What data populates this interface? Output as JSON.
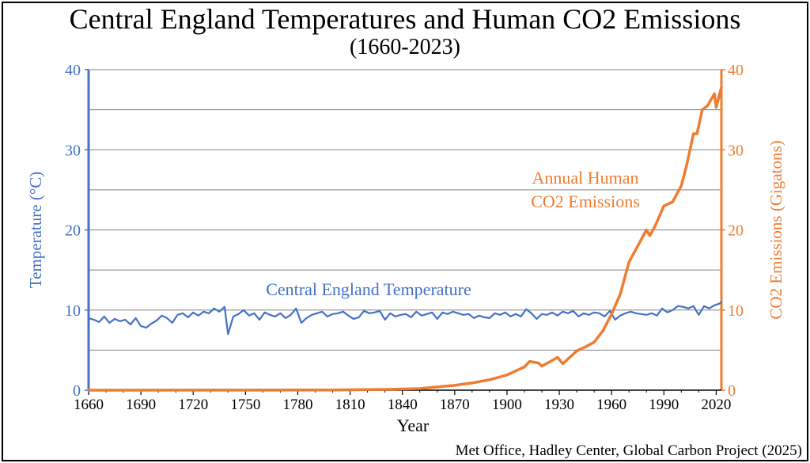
{
  "header": {
    "title": "Central England Temperatures and Human CO2 Emissions",
    "subtitle": "(1660-2023)"
  },
  "footer": {
    "source": "Met Office, Hadley Center, Global Carbon Project (2025)"
  },
  "colors": {
    "temperature": "#4472c4",
    "co2": "#ed7d31",
    "grid": "#808080",
    "axis": "#000000"
  },
  "chart_data": {
    "type": "line",
    "title": "Central England Temperatures and Human CO2 Emissions",
    "subtitle": "(1660-2023)",
    "xlabel": "Year",
    "xlim": [
      1660,
      2023
    ],
    "x_ticks": [
      1660,
      1690,
      1720,
      1750,
      1780,
      1810,
      1840,
      1870,
      1900,
      1930,
      1960,
      1990,
      2020
    ],
    "ylabel_left": "Temperature (°C)",
    "ylim_left": [
      0,
      40
    ],
    "y_ticks_left": [
      0,
      10,
      20,
      30,
      40
    ],
    "ylabel_right": "CO2 Emissions (Gigatons)",
    "ylim_right": [
      0,
      40
    ],
    "y_ticks_right": [
      0,
      10,
      20,
      30,
      40
    ],
    "grid": true,
    "annotations": [
      {
        "text": "Central England Temperature",
        "series": "temperature"
      },
      {
        "text": "Annual Human",
        "series": "co2"
      },
      {
        "text": "CO2 Emissions",
        "series": "co2"
      }
    ],
    "series": [
      {
        "key": "temperature",
        "axis": "left",
        "x": [
          1660,
          1663,
          1666,
          1669,
          1672,
          1675,
          1678,
          1681,
          1684,
          1687,
          1690,
          1693,
          1696,
          1699,
          1702,
          1705,
          1708,
          1711,
          1714,
          1717,
          1720,
          1723,
          1726,
          1729,
          1732,
          1735,
          1738,
          1740,
          1743,
          1746,
          1749,
          1752,
          1755,
          1758,
          1761,
          1764,
          1767,
          1770,
          1773,
          1776,
          1779,
          1782,
          1785,
          1788,
          1791,
          1794,
          1797,
          1800,
          1803,
          1806,
          1809,
          1812,
          1815,
          1818,
          1821,
          1824,
          1827,
          1830,
          1833,
          1836,
          1839,
          1842,
          1845,
          1848,
          1851,
          1854,
          1857,
          1860,
          1863,
          1866,
          1869,
          1872,
          1875,
          1878,
          1881,
          1884,
          1887,
          1890,
          1893,
          1896,
          1899,
          1902,
          1905,
          1908,
          1911,
          1914,
          1917,
          1920,
          1923,
          1926,
          1929,
          1932,
          1935,
          1938,
          1941,
          1944,
          1947,
          1950,
          1953,
          1956,
          1959,
          1962,
          1965,
          1968,
          1971,
          1974,
          1977,
          1980,
          1983,
          1986,
          1989,
          1992,
          1995,
          1998,
          2001,
          2004,
          2007,
          2010,
          2013,
          2016,
          2019,
          2022,
          2023
        ],
        "values": [
          9.0,
          8.8,
          8.5,
          9.2,
          8.4,
          8.9,
          8.6,
          8.8,
          8.2,
          9.0,
          8.0,
          7.8,
          8.3,
          8.7,
          9.3,
          9.0,
          8.4,
          9.4,
          9.6,
          9.1,
          9.7,
          9.3,
          9.8,
          9.6,
          10.2,
          9.8,
          10.4,
          7.0,
          9.2,
          9.5,
          10.0,
          9.3,
          9.6,
          8.8,
          9.7,
          9.4,
          9.2,
          9.6,
          9.0,
          9.4,
          10.2,
          8.4,
          9.0,
          9.4,
          9.6,
          9.8,
          9.2,
          9.5,
          9.6,
          9.8,
          9.3,
          8.9,
          9.1,
          9.9,
          9.6,
          9.7,
          9.9,
          8.8,
          9.6,
          9.2,
          9.4,
          9.5,
          9.1,
          9.8,
          9.3,
          9.5,
          9.7,
          8.9,
          9.7,
          9.5,
          9.8,
          9.6,
          9.4,
          9.5,
          9.0,
          9.3,
          9.1,
          9.0,
          9.6,
          9.4,
          9.7,
          9.2,
          9.5,
          9.2,
          10.1,
          9.6,
          8.9,
          9.5,
          9.4,
          9.7,
          9.3,
          9.8,
          9.6,
          9.9,
          9.2,
          9.6,
          9.4,
          9.7,
          9.6,
          9.2,
          9.9,
          8.8,
          9.3,
          9.6,
          9.8,
          9.6,
          9.5,
          9.4,
          9.6,
          9.3,
          10.2,
          9.7,
          10.0,
          10.5,
          10.4,
          10.2,
          10.5,
          9.4,
          10.5,
          10.2,
          10.6,
          10.8,
          11.0
        ]
      },
      {
        "key": "co2",
        "axis": "right",
        "x": [
          1660,
          1750,
          1800,
          1830,
          1850,
          1860,
          1870,
          1880,
          1890,
          1900,
          1905,
          1910,
          1913,
          1918,
          1920,
          1925,
          1929,
          1932,
          1935,
          1940,
          1945,
          1950,
          1955,
          1960,
          1965,
          1970,
          1975,
          1980,
          1982,
          1985,
          1990,
          1995,
          2000,
          2003,
          2007,
          2009,
          2012,
          2015,
          2019,
          2020,
          2022,
          2023
        ],
        "values": [
          0.0,
          0.01,
          0.03,
          0.1,
          0.2,
          0.4,
          0.6,
          0.9,
          1.3,
          1.9,
          2.4,
          2.9,
          3.6,
          3.4,
          3.0,
          3.6,
          4.1,
          3.3,
          3.9,
          4.9,
          5.4,
          6.0,
          7.4,
          9.5,
          12.0,
          16.0,
          18.0,
          20.0,
          19.3,
          20.5,
          23.0,
          23.5,
          25.5,
          28.0,
          32.0,
          32.0,
          35.0,
          35.5,
          37.0,
          35.3,
          37.0,
          37.8
        ]
      }
    ]
  }
}
